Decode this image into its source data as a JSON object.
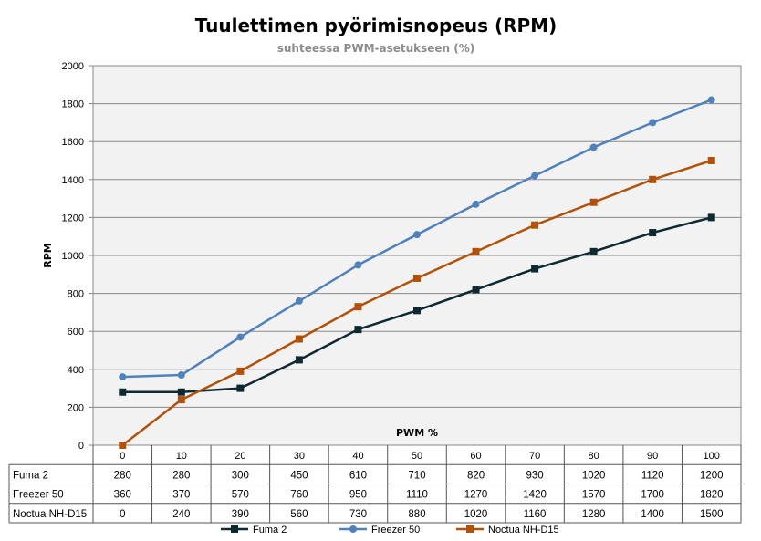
{
  "chart_data": {
    "type": "line",
    "title": "Tuulettimen pyörimisnopeus (RPM)",
    "subtitle": "suhteessa PWM-asetukseen (%)",
    "xlabel": "PWM %",
    "ylabel": "RPM",
    "ylim": [
      0,
      2000
    ],
    "ytick_step": 200,
    "grid": true,
    "legend_position": "bottom",
    "x": [
      0,
      10,
      20,
      30,
      40,
      50,
      60,
      70,
      80,
      90,
      100
    ],
    "series": [
      {
        "name": "Fuma 2",
        "color": "#0d2a33",
        "marker": "square",
        "values": [
          280,
          280,
          300,
          450,
          610,
          710,
          820,
          930,
          1020,
          1120,
          1200
        ]
      },
      {
        "name": "Freezer 50",
        "color": "#4f81bd",
        "marker": "circle",
        "values": [
          360,
          370,
          570,
          760,
          950,
          1110,
          1270,
          1420,
          1570,
          1700,
          1820
        ]
      },
      {
        "name": "Noctua NH-D15",
        "color": "#b35109",
        "marker": "square",
        "values": [
          0,
          240,
          390,
          560,
          730,
          880,
          1020,
          1160,
          1280,
          1400,
          1500
        ]
      }
    ],
    "plot_background": "#f2f2f2",
    "gridline_color": "#898989"
  }
}
